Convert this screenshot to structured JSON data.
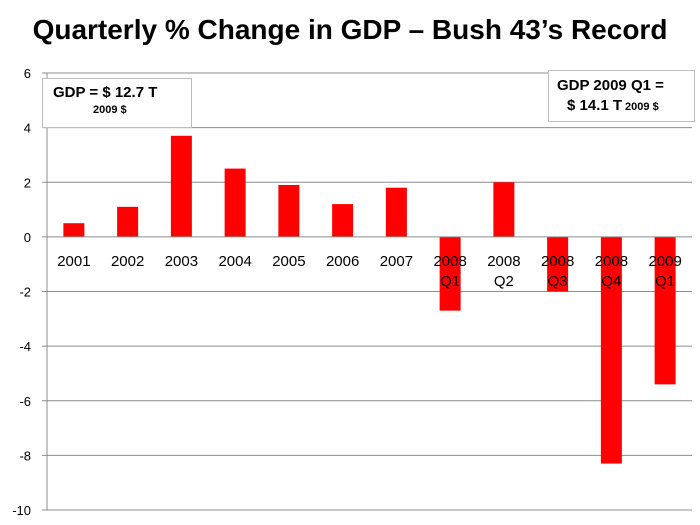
{
  "chart_data": {
    "type": "bar",
    "title": "Quarterly  % Change in GDP – Bush 43’s Record",
    "categories": [
      [
        "2001"
      ],
      [
        "2002"
      ],
      [
        "2003"
      ],
      [
        "2004"
      ],
      [
        "2005"
      ],
      [
        "2006"
      ],
      [
        "2007"
      ],
      [
        "2008",
        "Q1"
      ],
      [
        "2008",
        "Q2"
      ],
      [
        "2008",
        "Q3"
      ],
      [
        "2008",
        "Q4"
      ],
      [
        "2009",
        "Q1"
      ]
    ],
    "values": [
      0.5,
      1.1,
      3.7,
      2.5,
      1.9,
      1.2,
      1.8,
      -2.7,
      2.0,
      -2.0,
      -8.3,
      -5.4
    ],
    "ylim": [
      -10,
      6
    ],
    "yticks": [
      -10,
      -8,
      -6,
      -4,
      -2,
      0,
      2,
      4,
      6
    ],
    "ytick_labels": [
      "-10",
      "-8",
      "-6",
      "-4",
      "-2",
      "0",
      "2",
      "4",
      "6"
    ],
    "grid": true,
    "bar_color": "#ff0000",
    "grid_color": "#8c8c8c",
    "xlabel": "",
    "ylabel": ""
  },
  "notes": {
    "left": {
      "line1": "GDP  = $ 12.7 T",
      "line2": "2009 $"
    },
    "right": {
      "line1": "GDP 2009 Q1  =",
      "line2": "$ 14.1 T",
      "line2_small": "2009  $"
    }
  }
}
